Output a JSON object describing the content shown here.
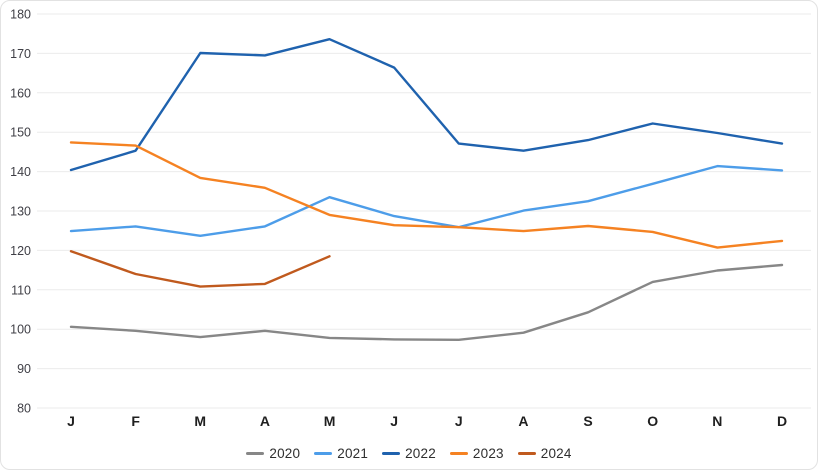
{
  "chart_data": {
    "type": "line",
    "categories": [
      "J",
      "F",
      "M",
      "A",
      "M",
      "J",
      "J",
      "A",
      "S",
      "O",
      "N",
      "D"
    ],
    "series": [
      {
        "name": "2020",
        "color": "#878787",
        "values": [
          100.6,
          99.6,
          98.0,
          99.6,
          97.8,
          97.4,
          97.3,
          99.1,
          104.3,
          112.0,
          114.9,
          116.3
        ]
      },
      {
        "name": "2021",
        "color": "#4D9DE9",
        "values": [
          124.9,
          126.1,
          123.7,
          126.1,
          133.5,
          128.7,
          125.9,
          130.1,
          132.5,
          136.9,
          141.4,
          140.3
        ]
      },
      {
        "name": "2022",
        "color": "#1F62AE",
        "values": [
          140.4,
          145.3,
          170.1,
          169.5,
          173.6,
          166.4,
          147.1,
          145.3,
          148.0,
          152.2,
          149.8,
          147.1
        ]
      },
      {
        "name": "2023",
        "color": "#F58222",
        "values": [
          147.4,
          146.6,
          138.4,
          135.9,
          129.0,
          126.4,
          125.9,
          124.9,
          126.2,
          124.7,
          120.7,
          122.4
        ]
      },
      {
        "name": "2024",
        "color": "#C05A1E",
        "values": [
          119.8,
          114.0,
          110.8,
          111.5,
          118.5,
          null,
          null,
          null,
          null,
          null,
          null,
          null
        ]
      }
    ],
    "title": "",
    "xlabel": "",
    "ylabel": "",
    "ylim": [
      80,
      180
    ],
    "ytick_step": 10,
    "grid": "horizontal",
    "gridline_color": "#ebebeb",
    "legend_position": "bottom"
  }
}
